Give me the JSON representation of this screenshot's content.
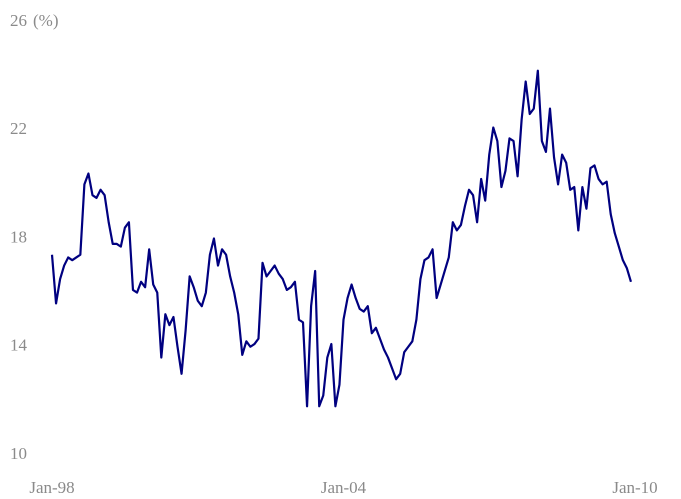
{
  "chart_data": {
    "type": "line",
    "y_unit": "(%)",
    "x": [
      "1998-01",
      "1998-02",
      "1998-03",
      "1998-04",
      "1998-05",
      "1998-06",
      "1998-07",
      "1998-08",
      "1998-09",
      "1998-10",
      "1998-11",
      "1998-12",
      "1999-01",
      "1999-02",
      "1999-03",
      "1999-04",
      "1999-05",
      "1999-06",
      "1999-07",
      "1999-08",
      "1999-09",
      "1999-10",
      "1999-11",
      "1999-12",
      "2000-01",
      "2000-02",
      "2000-03",
      "2000-04",
      "2000-05",
      "2000-06",
      "2000-07",
      "2000-08",
      "2000-09",
      "2000-10",
      "2000-11",
      "2000-12",
      "2001-01",
      "2001-02",
      "2001-03",
      "2001-04",
      "2001-05",
      "2001-06",
      "2001-07",
      "2001-08",
      "2001-09",
      "2001-10",
      "2001-11",
      "2001-12",
      "2002-01",
      "2002-02",
      "2002-03",
      "2002-04",
      "2002-05",
      "2002-06",
      "2002-07",
      "2002-08",
      "2002-09",
      "2002-10",
      "2002-11",
      "2002-12",
      "2003-01",
      "2003-02",
      "2003-03",
      "2003-04",
      "2003-05",
      "2003-06",
      "2003-07",
      "2003-08",
      "2003-09",
      "2003-10",
      "2003-11",
      "2003-12",
      "2004-01",
      "2004-02",
      "2004-03",
      "2004-04",
      "2004-05",
      "2004-06",
      "2004-07",
      "2004-08",
      "2004-09",
      "2004-10",
      "2004-11",
      "2004-12",
      "2005-01",
      "2005-02",
      "2005-03",
      "2005-04",
      "2005-05",
      "2005-06",
      "2005-07",
      "2005-08",
      "2005-09",
      "2005-10",
      "2005-11",
      "2005-12",
      "2006-01",
      "2006-02",
      "2006-03",
      "2006-04",
      "2006-05",
      "2006-06",
      "2006-07",
      "2006-08",
      "2006-09",
      "2006-10",
      "2006-11",
      "2006-12",
      "2007-01",
      "2007-02",
      "2007-03",
      "2007-04",
      "2007-05",
      "2007-06",
      "2007-07",
      "2007-08",
      "2007-09",
      "2007-10",
      "2007-11",
      "2007-12",
      "2008-01",
      "2008-02",
      "2008-03",
      "2008-04",
      "2008-05",
      "2008-06",
      "2008-07",
      "2008-08",
      "2008-09",
      "2008-10",
      "2008-11",
      "2008-12",
      "2009-01",
      "2009-02",
      "2009-03",
      "2009-04",
      "2009-05",
      "2009-06",
      "2009-07",
      "2009-08",
      "2009-09",
      "2009-10",
      "2009-11",
      "2009-12"
    ],
    "series": [
      {
        "color": "#000080",
        "values": [
          17.4,
          15.6,
          16.5,
          17.0,
          17.3,
          17.2,
          17.3,
          17.4,
          20.0,
          20.4,
          19.6,
          19.5,
          19.8,
          19.6,
          18.6,
          17.8,
          17.8,
          17.7,
          18.4,
          18.6,
          16.1,
          16.0,
          16.4,
          16.2,
          17.6,
          16.3,
          16.0,
          13.6,
          15.2,
          14.8,
          15.1,
          14.0,
          13.0,
          14.6,
          16.6,
          16.2,
          15.7,
          15.5,
          16.0,
          17.4,
          18.0,
          17.0,
          17.6,
          17.4,
          16.6,
          16.0,
          15.2,
          13.7,
          14.2,
          14.0,
          14.1,
          14.3,
          17.1,
          16.6,
          16.8,
          17.0,
          16.7,
          16.5,
          16.1,
          16.2,
          16.4,
          15.0,
          14.9,
          11.8,
          15.5,
          16.8,
          11.8,
          12.2,
          13.6,
          14.1,
          11.8,
          12.6,
          15.0,
          15.8,
          16.3,
          15.8,
          15.4,
          15.3,
          15.5,
          14.5,
          14.7,
          14.3,
          13.9,
          13.6,
          13.2,
          12.8,
          13.0,
          13.8,
          14.0,
          14.2,
          15.0,
          16.5,
          17.2,
          17.3,
          17.6,
          15.8,
          16.3,
          16.8,
          17.3,
          18.6,
          18.3,
          18.5,
          19.2,
          19.8,
          19.6,
          18.6,
          20.2,
          19.4,
          21.1,
          22.1,
          21.6,
          19.9,
          20.5,
          21.7,
          21.6,
          20.3,
          22.4,
          23.8,
          22.6,
          22.8,
          24.2,
          21.6,
          21.2,
          22.8,
          21.0,
          20.0,
          21.1,
          20.8,
          19.8,
          19.9,
          18.3,
          19.9,
          19.1,
          20.6,
          20.7,
          20.2,
          20.0,
          20.1,
          18.9,
          18.2,
          17.7,
          17.2,
          16.9,
          16.4
        ]
      }
    ],
    "xlim": [
      "1998-01",
      "2010-01"
    ],
    "xticks": [
      {
        "value": "1998-01",
        "label": "Jan-98"
      },
      {
        "value": "2004-01",
        "label": "Jan-04"
      },
      {
        "value": "2010-01",
        "label": "Jan-10"
      }
    ],
    "ylim": [
      10,
      26
    ],
    "yticks": [
      10,
      14,
      18,
      22,
      26
    ],
    "grid": false
  }
}
